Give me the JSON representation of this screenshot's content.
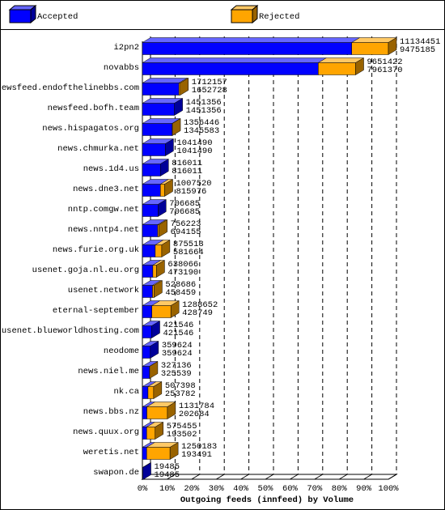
{
  "chart_data": {
    "type": "bar3d-stacked-horizontal",
    "x_label": "Outgoing feeds (innfeed) by Volume",
    "categories": [
      "i2pn2",
      "novabbs",
      "newsfeed.endofthelinebbs.com",
      "newsfeed.bofh.team",
      "news.hispagatos.org",
      "news.chmurka.net",
      "news.1d4.us",
      "news.dne3.net",
      "nntp.comgw.net",
      "news.nntp4.net",
      "news.furie.org.uk",
      "usenet.goja.nl.eu.org",
      "usenet.network",
      "eternal-september",
      "usenet.blueworldhosting.com",
      "neodome",
      "news.niel.me",
      "nk.ca",
      "news.bbs.nz",
      "news.quux.org",
      "weretis.net",
      "swapon.de"
    ],
    "totals": [
      11134451,
      9651422,
      1712157,
      1451356,
      1356446,
      1041490,
      816011,
      1007520,
      706685,
      756223,
      875513,
      638066,
      528686,
      1288652,
      421546,
      359624,
      327136,
      507398,
      1131784,
      575455,
      1250183,
      19485
    ],
    "series": [
      {
        "name": "Accepted",
        "color": "#0000ff",
        "values": [
          9475185,
          7961370,
          1652728,
          1451356,
          1345583,
          1041490,
          816011,
          815976,
          706685,
          694155,
          581664,
          473190,
          458459,
          428749,
          421546,
          359624,
          325539,
          253782,
          202684,
          193502,
          193491,
          19485
        ]
      },
      {
        "name": "Rejected",
        "color": "#ffa500",
        "values": [
          1659266,
          1690052,
          59429,
          0,
          10863,
          0,
          0,
          191544,
          0,
          62068,
          293849,
          164876,
          70227,
          859903,
          0,
          0,
          1597,
          253616,
          929100,
          381953,
          1056692,
          0
        ]
      }
    ],
    "xlim": [
      0,
      11134451
    ],
    "xticks": [
      {
        "value": 0,
        "label": "0%"
      },
      {
        "value": 1113445.1,
        "label": "10%"
      },
      {
        "value": 2226890.2,
        "label": "20%"
      },
      {
        "value": 3340335.3,
        "label": "30%"
      },
      {
        "value": 4453780.4,
        "label": "40%"
      },
      {
        "value": 5567225.5,
        "label": "50%"
      },
      {
        "value": 6680670.6,
        "label": "60%"
      },
      {
        "value": 7794115.7,
        "label": "70%"
      },
      {
        "value": 8907560.8,
        "label": "80%"
      },
      {
        "value": 10021005.9,
        "label": "90%"
      },
      {
        "value": 11134451,
        "label": "100%"
      }
    ],
    "grid": true
  }
}
